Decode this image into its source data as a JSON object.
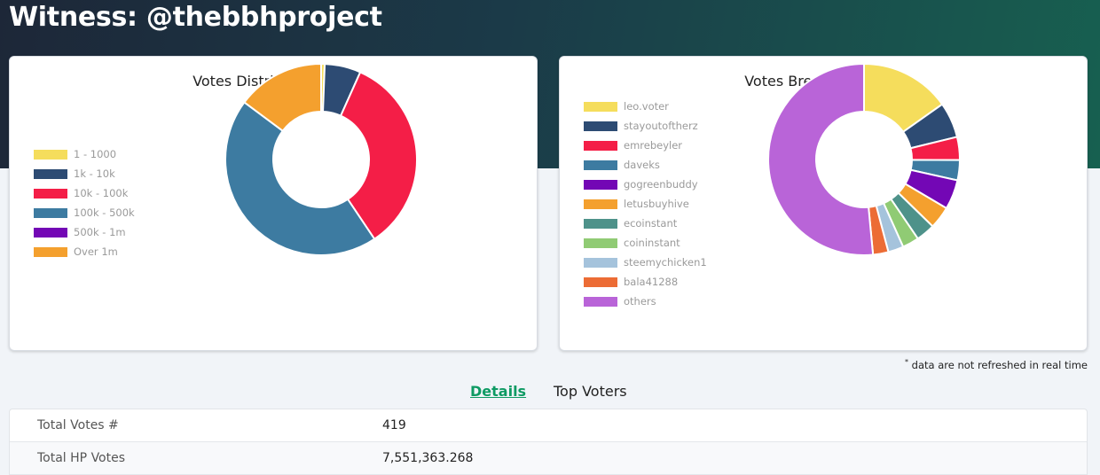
{
  "page": {
    "title": "Witness: @thebbhproject"
  },
  "distribution_card": {
    "title": "Votes Distribution (HP)",
    "legend": [
      {
        "label": "1 - 1000",
        "color": "#f5dd5c"
      },
      {
        "label": "1k - 10k",
        "color": "#2d4b73"
      },
      {
        "label": "10k - 100k",
        "color": "#f41e47"
      },
      {
        "label": "100k - 500k",
        "color": "#3d7ba1"
      },
      {
        "label": "500k - 1m",
        "color": "#7307b5"
      },
      {
        "label": "Over 1m",
        "color": "#f4a02e"
      }
    ]
  },
  "breakdown_card": {
    "title": "Votes Breakdown (HP)",
    "legend": [
      {
        "label": "leo.voter",
        "color": "#f5dd5c"
      },
      {
        "label": "stayoutoftherz",
        "color": "#2d4b73"
      },
      {
        "label": "emrebeyler",
        "color": "#f41e47"
      },
      {
        "label": "daveks",
        "color": "#3d7ba1"
      },
      {
        "label": "gogreenbuddy",
        "color": "#7307b5"
      },
      {
        "label": "letusbuyhive",
        "color": "#f4a02e"
      },
      {
        "label": "ecoinstant",
        "color": "#4e928a"
      },
      {
        "label": "coininstant",
        "color": "#90cb74"
      },
      {
        "label": "steemychicken1",
        "color": "#a5c3dc"
      },
      {
        "label": "bala41288",
        "color": "#ec6c35"
      },
      {
        "label": "others",
        "color": "#b964d8"
      }
    ]
  },
  "chart_data": [
    {
      "type": "pie",
      "title": "Votes Distribution (HP)",
      "categories": [
        "1 - 1000",
        "1k - 10k",
        "10k - 100k",
        "100k - 500k",
        "500k - 1m",
        "Over 1m"
      ],
      "values": [
        0.6,
        6.1,
        33.9,
        44.6,
        0,
        14.8
      ],
      "colors": [
        "#f5dd5c",
        "#2d4b73",
        "#f41e47",
        "#3d7ba1",
        "#7307b5",
        "#f4a02e"
      ],
      "hole": 0.5
    },
    {
      "type": "pie",
      "title": "Votes Breakdown (HP)",
      "categories": [
        "leo.voter",
        "stayoutoftherz",
        "emrebeyler",
        "daveks",
        "gogreenbuddy",
        "letusbuyhive",
        "ecoinstant",
        "coininstant",
        "steemychicken1",
        "bala41288",
        "others"
      ],
      "values": [
        15.2,
        6.0,
        3.9,
        3.4,
        5.0,
        3.8,
        3.2,
        2.8,
        2.6,
        2.6,
        51.5
      ],
      "colors": [
        "#f5dd5c",
        "#2d4b73",
        "#f41e47",
        "#3d7ba1",
        "#7307b5",
        "#f4a02e",
        "#4e928a",
        "#90cb74",
        "#a5c3dc",
        "#ec6c35",
        "#b964d8"
      ],
      "hole": 0.5
    }
  ],
  "footnote": {
    "mark": "*",
    "text": "data are not refreshed in real time"
  },
  "tabs": {
    "details": "Details",
    "top_voters": "Top Voters"
  },
  "details": {
    "rows": [
      {
        "label": "Total Votes #",
        "value": "419"
      },
      {
        "label": "Total HP Votes",
        "value": "7,551,363.268"
      }
    ]
  }
}
